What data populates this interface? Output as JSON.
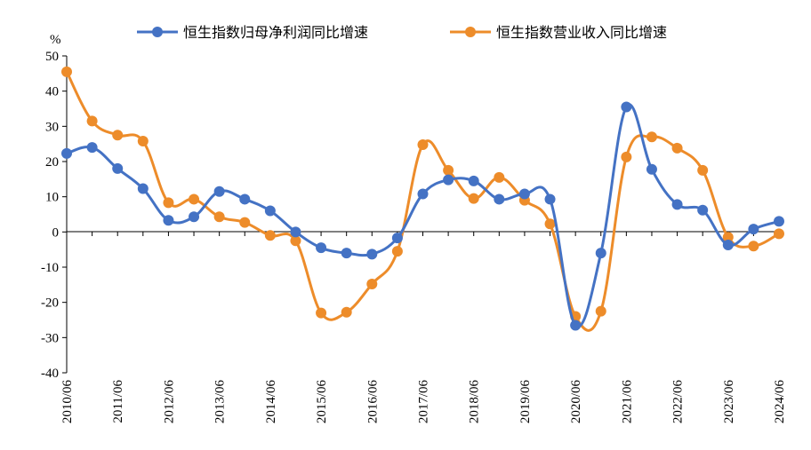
{
  "chart_data": {
    "type": "line",
    "title": "",
    "ylabel": "%",
    "xlabel": "",
    "ylim": [
      -40,
      50
    ],
    "ytick_step": 10,
    "xtick_labels": [
      "2010/06",
      "2011/06",
      "2012/06",
      "2013/06",
      "2014/06",
      "2015/06",
      "2016/06",
      "2017/06",
      "2018/06",
      "2019/06",
      "2020/06",
      "2021/06",
      "2022/06",
      "2023/06",
      "2024/06"
    ],
    "n_points": 29,
    "series": [
      {
        "name": "恒生指数归母净利润同比增速",
        "color": "#4472C4",
        "values": [
          22.3,
          24.0,
          18.0,
          12.3,
          3.3,
          4.3,
          11.5,
          9.3,
          6.0,
          0.0,
          -4.5,
          -6.0,
          -6.3,
          -1.7,
          10.8,
          14.8,
          14.5,
          9.3,
          10.8,
          9.3,
          -26.5,
          -6.0,
          35.5,
          17.8,
          7.8,
          6.2,
          -3.7,
          0.8,
          3.0
        ]
      },
      {
        "name": "恒生指数营业收入同比增速",
        "color": "#ED8C2A",
        "values": [
          45.5,
          31.5,
          27.5,
          25.8,
          8.3,
          9.3,
          4.3,
          2.7,
          -1.0,
          -2.5,
          -23.0,
          -22.8,
          -14.8,
          -5.5,
          24.8,
          17.5,
          9.5,
          15.5,
          9.0,
          2.3,
          -24.0,
          -22.5,
          21.3,
          27.0,
          23.8,
          17.5,
          -1.5,
          -4.0,
          -0.5
        ]
      }
    ]
  }
}
